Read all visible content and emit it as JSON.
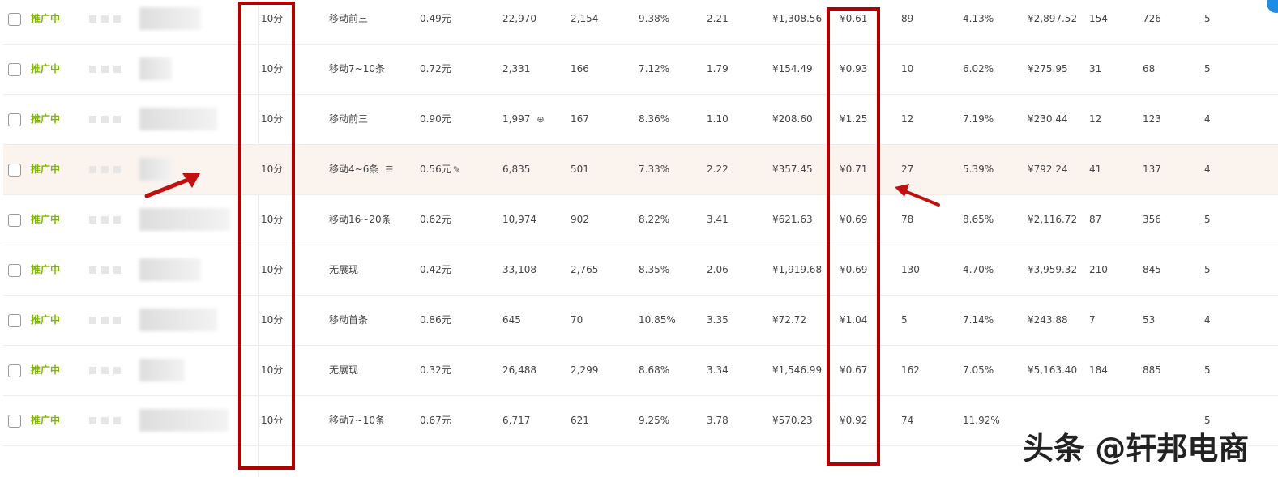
{
  "rows": [
    {
      "status": "推广中",
      "quality": "10分",
      "rank": "移动前三",
      "bid": "0.49元",
      "impressions": "22,970",
      "clicks": "2,154",
      "ctr": "9.38%",
      "avg_pos": "2.21",
      "cost": "¥1,308.56",
      "cpc": "¥0.61",
      "conversions": "89",
      "cvr": "4.13%",
      "revenue": "¥2,897.52",
      "c1": "154",
      "c2": "726",
      "c3": "5"
    },
    {
      "status": "推广中",
      "quality": "10分",
      "rank": "移动7~10条",
      "bid": "0.72元",
      "impressions": "2,331",
      "clicks": "166",
      "ctr": "7.12%",
      "avg_pos": "1.79",
      "cost": "¥154.49",
      "cpc": "¥0.93",
      "conversions": "10",
      "cvr": "6.02%",
      "revenue": "¥275.95",
      "c1": "31",
      "c2": "68",
      "c3": "5"
    },
    {
      "status": "推广中",
      "quality": "10分",
      "rank": "移动前三",
      "bid": "0.90元",
      "impressions": "1,997",
      "clicks": "167",
      "ctr": "8.36%",
      "avg_pos": "1.10",
      "cost": "¥208.60",
      "cpc": "¥1.25",
      "conversions": "12",
      "cvr": "7.19%",
      "revenue": "¥230.44",
      "c1": "12",
      "c2": "123",
      "c3": "4"
    },
    {
      "status": "推广中",
      "quality": "10分",
      "rank": "移动4~6条",
      "bid": "0.56元",
      "impressions": "6,835",
      "clicks": "501",
      "ctr": "7.33%",
      "avg_pos": "2.22",
      "cost": "¥357.45",
      "cpc": "¥0.71",
      "conversions": "27",
      "cvr": "5.39%",
      "revenue": "¥792.24",
      "c1": "41",
      "c2": "137",
      "c3": "4"
    },
    {
      "status": "推广中",
      "quality": "10分",
      "rank": "移动16~20条",
      "bid": "0.62元",
      "impressions": "10,974",
      "clicks": "902",
      "ctr": "8.22%",
      "avg_pos": "3.41",
      "cost": "¥621.63",
      "cpc": "¥0.69",
      "conversions": "78",
      "cvr": "8.65%",
      "revenue": "¥2,116.72",
      "c1": "87",
      "c2": "356",
      "c3": "5"
    },
    {
      "status": "推广中",
      "quality": "10分",
      "rank": "无展现",
      "bid": "0.42元",
      "impressions": "33,108",
      "clicks": "2,765",
      "ctr": "8.35%",
      "avg_pos": "2.06",
      "cost": "¥1,919.68",
      "cpc": "¥0.69",
      "conversions": "130",
      "cvr": "4.70%",
      "revenue": "¥3,959.32",
      "c1": "210",
      "c2": "845",
      "c3": "5"
    },
    {
      "status": "推广中",
      "quality": "10分",
      "rank": "移动首条",
      "bid": "0.86元",
      "impressions": "645",
      "clicks": "70",
      "ctr": "10.85%",
      "avg_pos": "3.35",
      "cost": "¥72.72",
      "cpc": "¥1.04",
      "conversions": "5",
      "cvr": "7.14%",
      "revenue": "¥243.88",
      "c1": "7",
      "c2": "53",
      "c3": "4"
    },
    {
      "status": "推广中",
      "quality": "10分",
      "rank": "无展现",
      "bid": "0.32元",
      "impressions": "26,488",
      "clicks": "2,299",
      "ctr": "8.68%",
      "avg_pos": "3.34",
      "cost": "¥1,546.99",
      "cpc": "¥0.67",
      "conversions": "162",
      "cvr": "7.05%",
      "revenue": "¥5,163.40",
      "c1": "184",
      "c2": "885",
      "c3": "5"
    },
    {
      "status": "推广中",
      "quality": "10分",
      "rank": "移动7~10条",
      "bid": "0.67元",
      "impressions": "6,717",
      "clicks": "621",
      "ctr": "9.25%",
      "avg_pos": "3.78",
      "cost": "¥570.23",
      "cpc": "¥0.92",
      "conversions": "74",
      "cvr": "11.92%",
      "revenue": "",
      "c1": "",
      "c2": "",
      "c3": "5"
    }
  ],
  "watermark": "头条 @轩邦电商",
  "colors": {
    "status": "#7fb800",
    "highlight_box": "#b00000",
    "row_highlight": "#fbf3ee"
  }
}
